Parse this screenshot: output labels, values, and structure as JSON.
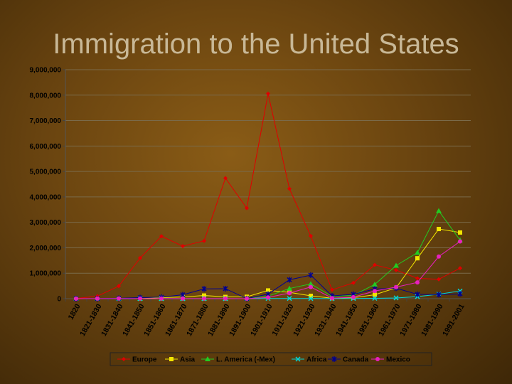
{
  "title": "Immigration to the United States",
  "chart_data": {
    "type": "line",
    "title": "Immigration to the United States",
    "xlabel": "",
    "ylabel": "",
    "ylim": [
      0,
      9000000
    ],
    "yticks": [
      0,
      1000000,
      2000000,
      3000000,
      4000000,
      5000000,
      6000000,
      7000000,
      8000000,
      9000000
    ],
    "ytick_labels": [
      "0",
      "1,000,000",
      "2,000,000",
      "3,000,000",
      "4,000,000",
      "5,000,000",
      "6,000,000",
      "7,000,000",
      "8,000,000",
      "9,000,000"
    ],
    "grid": true,
    "legend": "bottom",
    "categories": [
      "1820",
      "1821-1830",
      "1831-1840",
      "1841-1850",
      "1851-1860",
      "1861-1870",
      "1871-1880",
      "1881-1890",
      "1891-1900",
      "1901-1910",
      "1911-1920",
      "1921-1930",
      "1931-1940",
      "1941-1950",
      "1951-1960",
      "1961-1970",
      "1971-1980",
      "1981-1990",
      "1991-2001"
    ],
    "series": [
      {
        "name": "Europe",
        "color": "#e00000",
        "marker": "diamond",
        "values": [
          8000,
          99000,
          495000,
          1597000,
          2453000,
          2065000,
          2272000,
          4737000,
          3559000,
          8056000,
          4321000,
          2463000,
          348000,
          621000,
          1326000,
          1123000,
          800000,
          762000,
          1200000
        ]
      },
      {
        "name": "Asia",
        "color": "#f2e600",
        "marker": "square",
        "values": [
          0,
          0,
          0,
          0,
          41000,
          64000,
          124000,
          69000,
          75000,
          324000,
          247000,
          112000,
          17000,
          37000,
          153000,
          428000,
          1588000,
          2738000,
          2600000
        ]
      },
      {
        "name": "L. America (-Mex)",
        "color": "#22cc22",
        "marker": "triangle",
        "values": [
          0,
          0,
          0,
          0,
          0,
          0,
          0,
          0,
          0,
          100000,
          400000,
          580000,
          90000,
          130000,
          560000,
          1300000,
          1810000,
          3450000,
          2300000
        ]
      },
      {
        "name": "Africa",
        "color": "#00d8d8",
        "marker": "x",
        "values": [
          0,
          0,
          0,
          0,
          0,
          0,
          0,
          0,
          0,
          7000,
          8000,
          6000,
          2000,
          7000,
          14000,
          29000,
          80000,
          176000,
          300000
        ]
      },
      {
        "name": "Canada",
        "color": "#000090",
        "marker": "star",
        "values": [
          0,
          2000,
          14000,
          42000,
          59000,
          154000,
          384000,
          393000,
          3000,
          179000,
          742000,
          925000,
          109000,
          172000,
          378000,
          413000,
          170000,
          156000,
          190000
        ]
      },
      {
        "name": "Mexico",
        "color": "#e820c0",
        "marker": "circle",
        "values": [
          0,
          5000,
          7000,
          3000,
          3000,
          2000,
          5000,
          2000,
          1000,
          50000,
          219000,
          459000,
          22000,
          61000,
          300000,
          454000,
          640000,
          1656000,
          2250000
        ]
      }
    ]
  }
}
